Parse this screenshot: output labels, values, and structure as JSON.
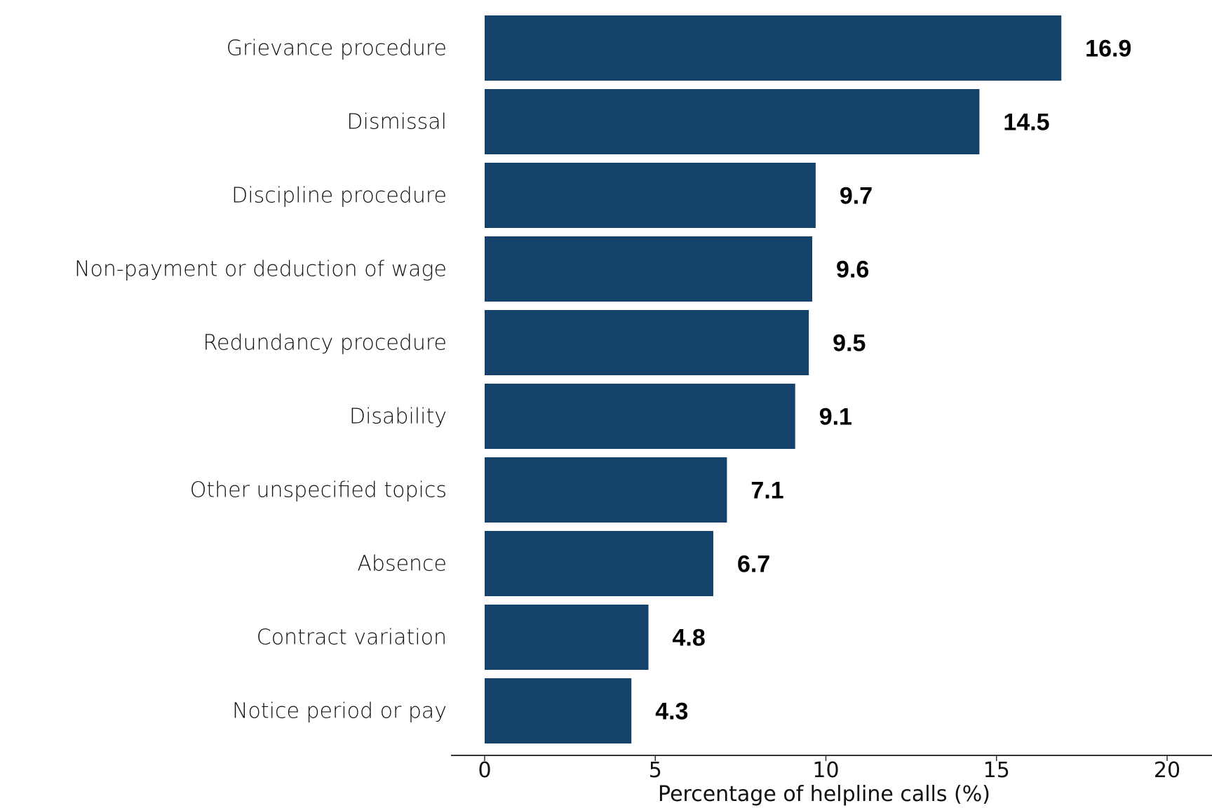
{
  "chart_data": {
    "type": "bar",
    "orientation": "horizontal",
    "title": "",
    "xlabel": "Percentage of helpline calls (%)",
    "ylabel": "",
    "xlim": [
      -1,
      21.3
    ],
    "xticks": [
      0,
      5,
      10,
      15,
      20
    ],
    "grid": false,
    "bar_color": "#14426b",
    "categories": [
      "Grievance procedure",
      "Dismissal",
      "Discipline procedure",
      "Non-payment or deduction of wage",
      "Redundancy procedure",
      "Disability",
      "Other unspecified topics",
      "Absence",
      "Contract variation",
      "Notice period or pay"
    ],
    "values": [
      16.9,
      14.5,
      9.7,
      9.6,
      9.5,
      9.1,
      7.1,
      6.7,
      4.8,
      4.3
    ],
    "value_labels": [
      "16.9",
      "14.5",
      "9.7",
      "9.6",
      "9.5",
      "9.1",
      "7.1",
      "6.7",
      "4.8",
      "4.3"
    ]
  }
}
